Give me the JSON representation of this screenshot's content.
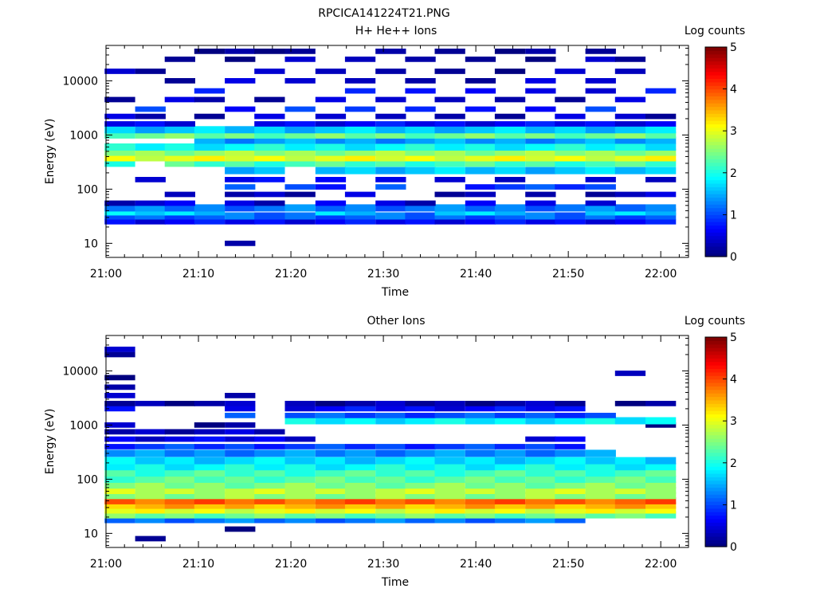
{
  "page_title": "RPCICA141224T21.PNG",
  "chart_data": [
    {
      "type": "heatmap",
      "title": "H+ He++ Ions",
      "xlabel": "Time",
      "ylabel": "Energy (eV)",
      "y_scale": "log",
      "ylim": [
        5.5,
        45000
      ],
      "xlim": [
        "21:00",
        "22:03"
      ],
      "x_ticks": [
        "21:00",
        "21:10",
        "21:20",
        "21:30",
        "21:40",
        "21:50",
        "22:00"
      ],
      "y_ticks": [
        "10",
        "100",
        "1000",
        "10000"
      ],
      "colorbar": {
        "label": "Log counts",
        "range": [
          0,
          5
        ],
        "ticks": [
          "0",
          "1",
          "2",
          "3",
          "4",
          "5"
        ]
      },
      "time_bins_min": [
        1.5,
        4.8,
        8,
        11.2,
        14.5,
        17.7,
        21,
        24.3,
        27.5,
        30.8,
        34,
        37.2,
        40.5,
        43.7,
        47,
        50.2,
        53.5,
        56.7,
        60
      ],
      "cells": [
        {
          "e": 10,
          "v": 0.1,
          "cols": [
            4
          ]
        },
        {
          "e": 25,
          "v": 0.6,
          "cols": [
            0,
            1,
            2,
            3,
            4,
            5,
            6,
            7,
            8,
            9,
            10,
            11,
            12,
            13,
            14,
            15,
            16,
            17,
            18
          ]
        },
        {
          "e": 32,
          "v": 1.1,
          "cols": [
            0,
            1,
            2,
            3,
            4,
            5,
            6,
            7,
            8,
            9,
            10,
            11,
            12,
            13,
            14,
            15,
            16,
            17,
            18
          ]
        },
        {
          "e": 38,
          "v": 1.7,
          "cols": [
            0,
            1,
            2,
            3,
            7,
            8,
            11,
            12,
            13,
            16,
            17,
            18
          ]
        },
        {
          "e": 45,
          "v": 1.2,
          "cols": [
            0,
            1,
            2,
            3,
            4,
            5,
            6,
            7,
            8,
            9,
            10,
            11,
            12,
            13,
            14,
            15,
            16,
            17,
            18
          ]
        },
        {
          "e": 55,
          "v": 0.4,
          "cols": [
            0,
            1,
            2,
            4,
            5,
            7,
            9,
            10,
            12,
            14,
            16
          ]
        },
        {
          "e": 80,
          "v": 0.3,
          "cols": [
            2,
            4,
            5,
            6,
            8,
            11,
            12,
            14,
            16,
            17,
            18
          ]
        },
        {
          "e": 110,
          "v": 0.9,
          "cols": [
            4,
            6,
            7,
            9,
            12,
            13,
            14,
            15,
            16
          ]
        },
        {
          "e": 150,
          "v": 0.5,
          "cols": [
            1,
            4,
            5,
            7,
            9,
            11,
            13,
            16,
            18
          ]
        },
        {
          "e": 220,
          "v": 1.6,
          "cols": [
            4,
            5,
            7,
            8,
            9,
            10,
            11,
            12,
            13,
            14,
            15,
            16,
            17,
            18
          ]
        },
        {
          "e": 300,
          "v": 2.2,
          "cols": [
            0,
            2,
            3,
            4,
            5,
            6,
            7,
            8,
            9,
            10,
            11,
            12,
            13,
            14,
            15,
            16,
            17,
            18
          ]
        },
        {
          "e": 380,
          "v": 3.0,
          "cols": [
            0,
            1,
            2,
            3,
            4,
            5,
            6,
            7,
            8,
            9,
            10,
            11,
            12,
            13,
            14,
            15,
            16,
            17,
            18
          ]
        },
        {
          "e": 480,
          "v": 2.6,
          "cols": [
            0,
            1,
            2,
            3,
            4,
            5,
            6,
            7,
            8,
            9,
            10,
            11,
            12,
            13,
            14,
            15,
            16,
            17,
            18
          ]
        },
        {
          "e": 600,
          "v": 1.9,
          "cols": [
            0,
            1,
            2,
            3,
            4,
            5,
            6,
            7,
            8,
            9,
            10,
            11,
            12,
            13,
            14,
            15,
            16,
            17,
            18
          ]
        },
        {
          "e": 800,
          "v": 1.4,
          "cols": [
            3,
            4,
            5,
            6,
            7,
            8,
            9,
            10,
            11,
            12,
            13,
            14,
            15,
            16,
            17,
            18
          ]
        },
        {
          "e": 1000,
          "v": 2.4,
          "cols": [
            0,
            1,
            2,
            3,
            4,
            5,
            6,
            7,
            8,
            9,
            10,
            11,
            12,
            13,
            14,
            15,
            16,
            17,
            18
          ]
        },
        {
          "e": 1250,
          "v": 1.6,
          "cols": [
            0,
            1,
            2,
            3,
            4,
            5,
            6,
            7,
            8,
            9,
            10,
            11,
            12,
            13,
            14,
            15,
            16,
            17,
            18
          ]
        },
        {
          "e": 1600,
          "v": 0.6,
          "cols": [
            0,
            1,
            2,
            5,
            6,
            7,
            8,
            9,
            10,
            11,
            12,
            13,
            14,
            15,
            16,
            17,
            18
          ]
        },
        {
          "e": 2200,
          "v": 0.3,
          "cols": [
            0,
            1,
            3,
            5,
            7,
            9,
            11,
            13,
            15,
            17,
            18
          ]
        },
        {
          "e": 3000,
          "v": 0.8,
          "cols": [
            1,
            4,
            6,
            8,
            10,
            12,
            14,
            16
          ]
        },
        {
          "e": 4500,
          "v": 0.3,
          "cols": [
            0,
            2,
            3,
            5,
            7,
            9,
            11,
            13,
            15,
            17
          ]
        },
        {
          "e": 6500,
          "v": 0.6,
          "cols": [
            3,
            8,
            10,
            12,
            14,
            16,
            18
          ]
        },
        {
          "e": 10000,
          "v": 0.3,
          "cols": [
            2,
            4,
            6,
            8,
            10,
            12,
            14,
            16
          ]
        },
        {
          "e": 15000,
          "v": 0.2,
          "cols": [
            0,
            1,
            5,
            7,
            9,
            11,
            13,
            15,
            17
          ]
        },
        {
          "e": 25000,
          "v": 0.2,
          "cols": [
            2,
            4,
            6,
            8,
            10,
            12,
            14,
            16,
            17
          ]
        },
        {
          "e": 35000,
          "v": 0.1,
          "cols": [
            3,
            4,
            5,
            6,
            9,
            11,
            13,
            14,
            16
          ]
        }
      ]
    },
    {
      "type": "heatmap",
      "title": "Other Ions",
      "xlabel": "Time",
      "ylabel": "Energy (eV)",
      "y_scale": "log",
      "ylim": [
        5.5,
        45000
      ],
      "xlim": [
        "21:00",
        "22:03"
      ],
      "x_ticks": [
        "21:00",
        "21:10",
        "21:20",
        "21:30",
        "21:40",
        "21:50",
        "22:00"
      ],
      "y_ticks": [
        "10",
        "100",
        "1000",
        "10000"
      ],
      "colorbar": {
        "label": "Log counts",
        "range": [
          0,
          5
        ],
        "ticks": [
          "0",
          "1",
          "2",
          "3",
          "4",
          "5"
        ]
      },
      "time_bins_min": [
        1.5,
        4.8,
        8,
        11.2,
        14.5,
        17.7,
        21,
        24.3,
        27.5,
        30.8,
        34,
        37.2,
        40.5,
        43.7,
        47,
        50.2,
        53.5,
        56.7,
        60
      ],
      "cells": [
        {
          "e": 8,
          "v": 0.1,
          "cols": [
            1
          ]
        },
        {
          "e": 12,
          "v": 0.1,
          "cols": [
            4
          ]
        },
        {
          "e": 18,
          "v": 1.2,
          "cols": [
            0,
            1,
            2,
            3,
            4,
            5,
            6,
            7,
            8,
            9,
            10,
            11,
            12,
            13,
            14,
            15
          ]
        },
        {
          "e": 22,
          "v": 2.4,
          "cols": [
            0,
            1,
            2,
            3,
            4,
            5,
            6,
            7,
            8,
            9,
            10,
            11,
            12,
            13,
            14,
            15,
            16,
            17,
            18
          ]
        },
        {
          "e": 27,
          "v": 3.0,
          "cols": [
            0,
            1,
            2,
            3,
            4,
            5,
            6,
            7,
            8,
            9,
            10,
            11,
            12,
            13,
            14,
            15,
            16,
            17,
            18
          ]
        },
        {
          "e": 33,
          "v": 3.5,
          "cols": [
            0,
            1,
            2,
            3,
            4,
            5,
            6,
            7,
            8,
            9,
            10,
            11,
            12,
            13,
            14,
            15,
            16,
            17,
            18
          ]
        },
        {
          "e": 40,
          "v": 3.9,
          "cols": [
            0,
            1,
            2,
            3,
            4,
            5,
            6,
            7,
            8,
            9,
            10,
            11,
            12,
            13,
            14,
            15,
            16,
            17,
            18
          ]
        },
        {
          "e": 50,
          "v": 2.6,
          "cols": [
            0,
            1,
            2,
            3,
            4,
            5,
            6,
            7,
            8,
            9,
            10,
            11,
            12,
            13,
            14,
            15,
            16,
            17,
            18
          ]
        },
        {
          "e": 62,
          "v": 2.8,
          "cols": [
            0,
            1,
            2,
            3,
            4,
            5,
            6,
            7,
            8,
            9,
            10,
            11,
            12,
            13,
            14,
            15,
            16,
            17,
            18
          ]
        },
        {
          "e": 78,
          "v": 2.5,
          "cols": [
            0,
            1,
            2,
            3,
            4,
            5,
            6,
            7,
            8,
            9,
            10,
            11,
            12,
            13,
            14,
            15,
            16,
            17,
            18
          ]
        },
        {
          "e": 100,
          "v": 2.3,
          "cols": [
            0,
            1,
            2,
            3,
            4,
            5,
            6,
            7,
            8,
            9,
            10,
            11,
            12,
            13,
            14,
            15,
            16,
            17,
            18
          ]
        },
        {
          "e": 130,
          "v": 2.2,
          "cols": [
            0,
            1,
            2,
            3,
            4,
            5,
            6,
            7,
            8,
            9,
            10,
            11,
            12,
            13,
            14,
            15,
            16,
            17,
            18
          ]
        },
        {
          "e": 170,
          "v": 1.9,
          "cols": [
            0,
            1,
            2,
            3,
            4,
            5,
            6,
            7,
            8,
            9,
            10,
            11,
            12,
            13,
            14,
            15,
            16,
            17,
            18
          ]
        },
        {
          "e": 220,
          "v": 1.7,
          "cols": [
            0,
            1,
            2,
            3,
            4,
            5,
            6,
            7,
            8,
            9,
            10,
            11,
            12,
            13,
            14,
            15,
            16,
            17,
            18
          ]
        },
        {
          "e": 300,
          "v": 1.3,
          "cols": [
            0,
            1,
            2,
            3,
            4,
            5,
            6,
            7,
            8,
            9,
            10,
            11,
            12,
            13,
            14,
            15,
            16
          ]
        },
        {
          "e": 400,
          "v": 0.9,
          "cols": [
            0,
            1,
            2,
            3,
            4,
            5,
            6,
            7,
            8,
            9,
            10,
            11,
            12,
            13,
            14,
            15
          ]
        },
        {
          "e": 550,
          "v": 0.5,
          "cols": [
            0,
            1,
            2,
            3,
            4,
            5,
            6,
            14,
            15
          ]
        },
        {
          "e": 750,
          "v": 0.3,
          "cols": [
            0,
            1,
            2,
            3,
            4,
            5
          ]
        },
        {
          "e": 1000,
          "v": 0.2,
          "cols": [
            0,
            3,
            4,
            18
          ]
        },
        {
          "e": 1200,
          "v": 1.8,
          "cols": [
            6,
            7,
            8,
            9,
            10,
            11,
            12,
            13,
            14,
            15,
            16,
            17,
            18
          ]
        },
        {
          "e": 1500,
          "v": 1.0,
          "cols": [
            4,
            6,
            7,
            8,
            9,
            10,
            11,
            12,
            13,
            14,
            15,
            16
          ]
        },
        {
          "e": 2000,
          "v": 0.6,
          "cols": [
            0,
            4,
            6,
            7,
            8,
            9,
            10,
            11,
            12,
            13,
            14,
            15
          ]
        },
        {
          "e": 2500,
          "v": 0.2,
          "cols": [
            0,
            1,
            2,
            3,
            4,
            6,
            7,
            8,
            9,
            10,
            11,
            12,
            13,
            14,
            15,
            17,
            18
          ]
        },
        {
          "e": 3500,
          "v": 0.2,
          "cols": [
            0,
            4
          ]
        },
        {
          "e": 5000,
          "v": 0.2,
          "cols": [
            0
          ]
        },
        {
          "e": 7500,
          "v": 0.2,
          "cols": [
            0
          ]
        },
        {
          "e": 9000,
          "v": 0.3,
          "cols": [
            17
          ]
        },
        {
          "e": 20000,
          "v": 0.2,
          "cols": [
            0
          ]
        },
        {
          "e": 25000,
          "v": 0.2,
          "cols": [
            0
          ]
        }
      ]
    }
  ]
}
